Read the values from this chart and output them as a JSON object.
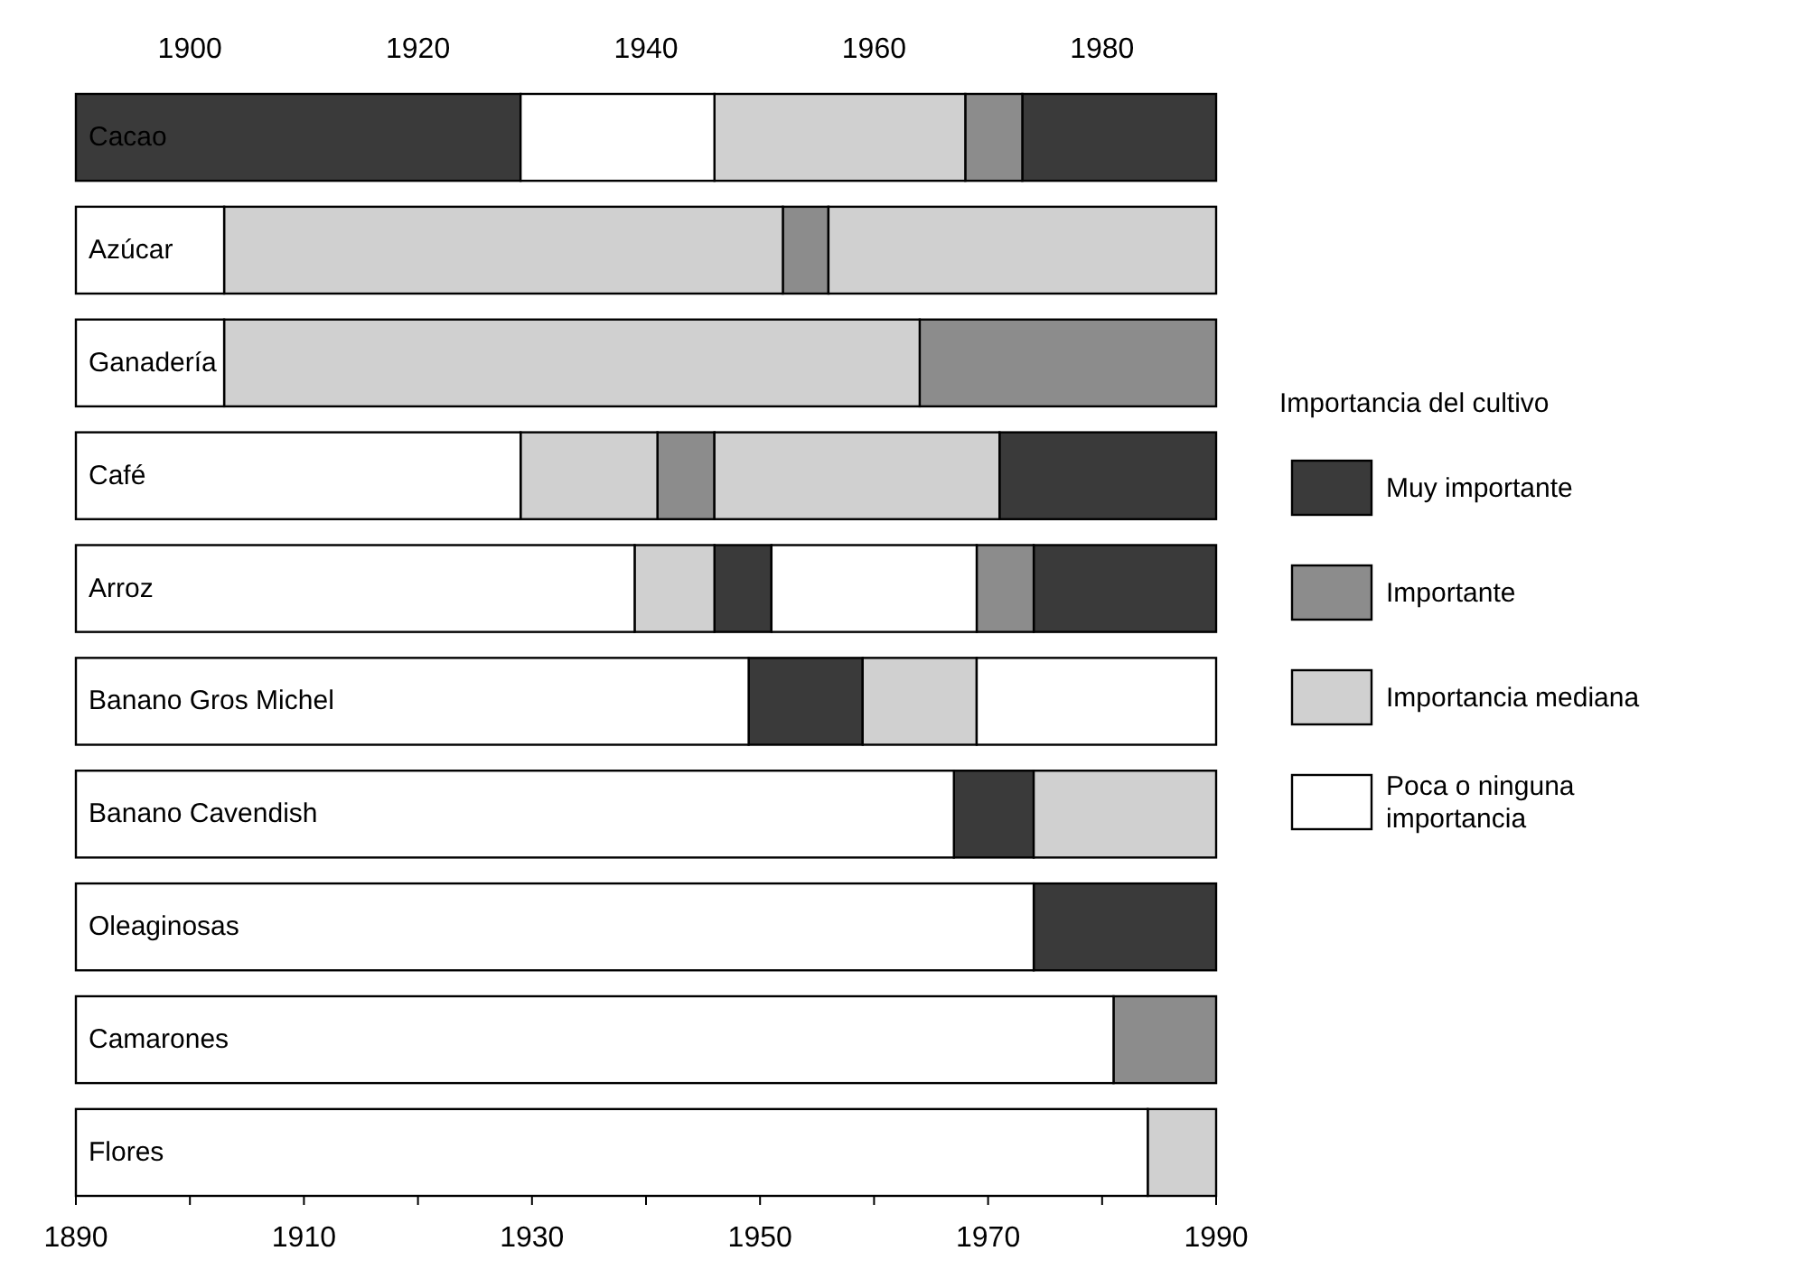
{
  "chart_data": {
    "type": "bar",
    "orientation": "horizontal",
    "legend_title": "Importancia del cultivo",
    "legend": "right",
    "categories": [
      "Cacao",
      "Azúcar",
      "Ganadería",
      "Café",
      "Arroz",
      "Banano Gros Michel",
      "Banano Cavendish",
      "Oleaginosas",
      "Camarones",
      "Flores"
    ],
    "xlim": [
      1890,
      1990
    ],
    "xticks": [
      1890,
      {
        "value": 1900,
        "label": null
      },
      1910,
      {
        "value": 1920,
        "label": null
      },
      1930,
      {
        "value": 1940,
        "label": null
      },
      1950,
      {
        "value": 1960,
        "label": null
      },
      1970,
      {
        "value": 1980,
        "label": null
      },
      1990
    ],
    "x2lim": [
      1890,
      1990
    ],
    "x2ticks": [
      1900,
      1920,
      1940,
      1960,
      1980
    ],
    "series": [
      {
        "name": "Muy importante",
        "color": "#3a3a3a",
        "base": [
          1890,
          null,
          null,
          1971,
          1946,
          1949,
          1967,
          1974,
          null,
          null
        ],
        "values": [
          39,
          null,
          null,
          19,
          5,
          10,
          7,
          16,
          null,
          null
        ]
      },
      {
        "color": "#3a3a3a",
        "base": [
          1973,
          null,
          null,
          null,
          1974,
          null,
          null,
          null,
          null,
          null
        ],
        "values": [
          17,
          null,
          null,
          null,
          16,
          null,
          null,
          null,
          null,
          null
        ]
      },
      {
        "name": "Importante",
        "color": "#8c8c8c",
        "base": [
          1968,
          1952,
          1964,
          1941,
          1969,
          null,
          null,
          null,
          1981,
          null
        ],
        "values": [
          5,
          4,
          26,
          5,
          5,
          null,
          null,
          null,
          9,
          null
        ]
      },
      {
        "name": "Importancia mediana",
        "color": "#d0d0d0",
        "base": [
          1946,
          1903,
          1903,
          1929,
          1939,
          1959,
          1974,
          null,
          null,
          1984
        ],
        "values": [
          22,
          49,
          61,
          12,
          7,
          10,
          16,
          null,
          null,
          6
        ]
      },
      {
        "color": "#d0d0d0",
        "base": [
          null,
          1956,
          null,
          1946,
          null,
          null,
          null,
          null,
          null,
          null
        ],
        "values": [
          null,
          34,
          null,
          25,
          null,
          null,
          null,
          null,
          null,
          null
        ]
      },
      {
        "name": "Poca o ninguna importancia",
        "color": "#ffffff",
        "base": [
          1929,
          1890,
          1890,
          1890,
          1890,
          1890,
          1890,
          1890,
          1890,
          1890
        ],
        "values": [
          17,
          13,
          13,
          39,
          49,
          59,
          77,
          84,
          91,
          94
        ]
      },
      {
        "color": "#ffffff",
        "base": [
          null,
          null,
          null,
          null,
          1951,
          1969,
          null,
          null,
          null,
          null
        ],
        "values": [
          null,
          null,
          null,
          null,
          18,
          21,
          null,
          null,
          null,
          null
        ]
      }
    ]
  }
}
